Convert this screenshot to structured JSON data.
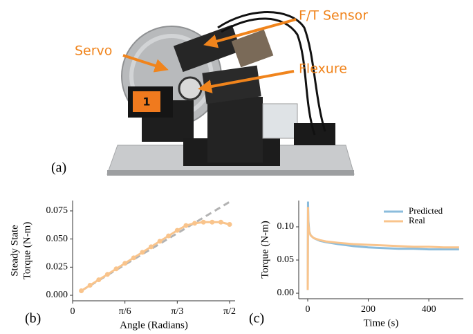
{
  "figure": {
    "panel_a": {
      "label": "(a)",
      "annotations": [
        "F/T Sensor",
        "Servo",
        "Flexure"
      ],
      "badge": "1"
    }
  },
  "chart_data": [
    {
      "type": "line",
      "panel_label": "(b)",
      "xlabel": "Angle (Radians)",
      "ylabel": [
        "Steady State",
        "Torque (N-m)"
      ],
      "xlim": [
        0,
        1.626
      ],
      "ylim": [
        -0.0049,
        0.0842
      ],
      "xticks": [
        0,
        {
          "value": 0.5236,
          "label": "π/6"
        },
        {
          "value": 1.0472,
          "label": "π/3"
        },
        {
          "value": 1.5708,
          "label": "π/2"
        }
      ],
      "yticks": [
        {
          "value": 0,
          "label": "0.000"
        },
        {
          "value": 0.025,
          "label": "0.025"
        },
        {
          "value": 0.05,
          "label": "0.050"
        },
        {
          "value": 0.075,
          "label": "0.075"
        }
      ],
      "grid": false,
      "series": [
        {
          "color": "#b3b3b3",
          "linestyle": "dashed",
          "marker": "none",
          "x": [
            0.0873,
            1.5708
          ],
          "values": [
            0.004,
            0.083
          ]
        },
        {
          "color": "#f9c48c",
          "linestyle": "solid",
          "marker": "o",
          "x": [
            0.0873,
            0.1745,
            0.2618,
            0.3491,
            0.4363,
            0.5236,
            0.6109,
            0.6981,
            0.7854,
            0.8727,
            0.9599,
            1.0472,
            1.1345,
            1.2217,
            1.309,
            1.3963,
            1.4835,
            1.5708
          ],
          "values": [
            0.004,
            0.0089,
            0.0138,
            0.0186,
            0.0235,
            0.0284,
            0.0333,
            0.0382,
            0.0431,
            0.048,
            0.0528,
            0.0577,
            0.062,
            0.064,
            0.065,
            0.065,
            0.065,
            0.063
          ]
        }
      ]
    },
    {
      "type": "line",
      "panel_label": "(c)",
      "xlabel": "Time (s)",
      "ylabel": [
        "Torque (N-m)"
      ],
      "xlim": [
        -29.7,
        514
      ],
      "ylim": [
        -0.0083,
        0.1396
      ],
      "xticks": [
        0,
        200,
        400
      ],
      "yticks": [
        {
          "value": 0,
          "label": "0.00"
        },
        {
          "value": 0.05,
          "label": "0.05"
        },
        {
          "value": 0.1,
          "label": "0.10"
        }
      ],
      "grid": false,
      "legend": "upper right",
      "x": [
        0,
        1,
        2,
        5,
        10,
        20,
        40,
        60,
        100,
        150,
        200,
        250,
        300,
        350,
        400,
        450,
        500
      ],
      "series": [
        {
          "name": "Predicted",
          "color": "#8bbcdc",
          "linestyle": "solid",
          "marker": "none",
          "values": [
            0.005,
            0.138,
            0.11,
            0.093,
            0.087,
            0.083,
            0.079,
            0.077,
            0.074,
            0.071,
            0.069,
            0.068,
            0.067,
            0.067,
            0.066,
            0.066,
            0.066
          ]
        },
        {
          "name": "Real",
          "color": "#f9c48c",
          "linestyle": "solid",
          "marker": "none",
          "values": [
            0.005,
            0.13,
            0.105,
            0.092,
            0.087,
            0.083,
            0.08,
            0.078,
            0.076,
            0.074,
            0.073,
            0.072,
            0.071,
            0.07,
            0.07,
            0.069,
            0.069
          ]
        }
      ]
    }
  ]
}
